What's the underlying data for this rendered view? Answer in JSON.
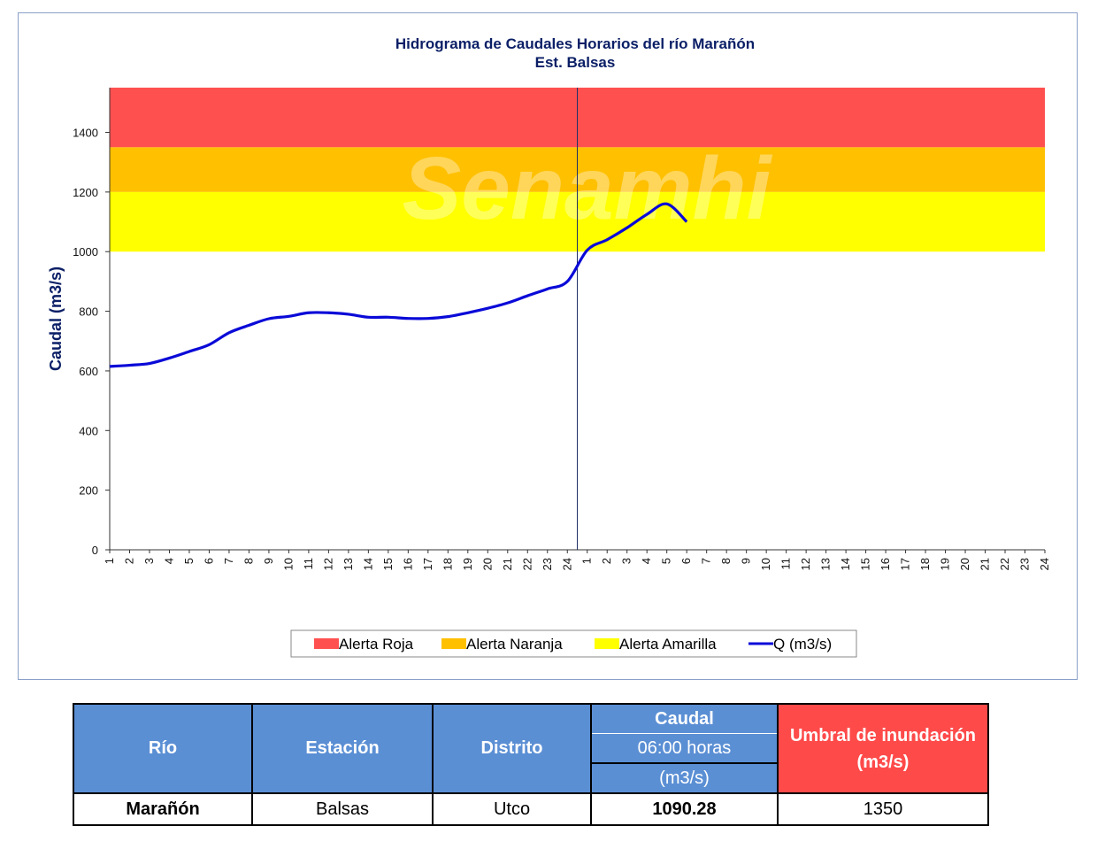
{
  "chart_data": {
    "type": "line",
    "title": "Hidrograma de Caudales Horarios del río Marañón",
    "subtitle": "Est. Balsas",
    "ylabel": "Caudal  (m3/s)",
    "xlabel": "",
    "ylim": [
      0,
      1550
    ],
    "yticks": [
      0,
      200,
      400,
      600,
      800,
      1000,
      1200,
      1400
    ],
    "x_tick_labels": [
      "1",
      "2",
      "3",
      "4",
      "5",
      "6",
      "7",
      "8",
      "9",
      "10",
      "11",
      "12",
      "13",
      "14",
      "15",
      "16",
      "17",
      "18",
      "19",
      "20",
      "21",
      "22",
      "23",
      "24",
      "1",
      "2",
      "3",
      "4",
      "5",
      "6",
      "7",
      "8",
      "9",
      "10",
      "11",
      "12",
      "13",
      "14",
      "15",
      "16",
      "17",
      "18",
      "19",
      "20",
      "21",
      "22",
      "23",
      "24"
    ],
    "day_separator_after_index": 24,
    "alert_bands": [
      {
        "name": "Alerta Roja",
        "from": 1350,
        "to": 1550,
        "color": "#ff5050"
      },
      {
        "name": "Alerta Naranja",
        "from": 1200,
        "to": 1350,
        "color": "#ffc000"
      },
      {
        "name": "Alerta Amarilla",
        "from": 1000,
        "to": 1200,
        "color": "#ffff00"
      }
    ],
    "series": [
      {
        "name": "Q (m3/s)",
        "color": "#0a0ad8",
        "values": [
          615,
          619,
          625,
          643,
          665,
          688,
          728,
          753,
          775,
          783,
          795,
          795,
          790,
          780,
          780,
          776,
          776,
          782,
          795,
          810,
          828,
          852,
          875,
          900,
          1005,
          1040,
          1080,
          1125,
          1160,
          1100
        ]
      }
    ],
    "legend": {
      "position": "bottom",
      "entries": [
        "Alerta Roja",
        "Alerta Naranja",
        "Alerta Amarilla",
        "Q (m3/s)"
      ]
    },
    "grid": false
  },
  "watermark": "Senamhi",
  "table": {
    "headers": {
      "rio": "Río",
      "estacion": "Estación",
      "distrito": "Distrito",
      "caudal": "Caudal",
      "hora": "06:00 horas",
      "unidad": "(m3/s)",
      "umbral": "Umbral de inundación (m3/s)"
    },
    "row": {
      "rio": "Marañón",
      "estacion": "Balsas",
      "distrito": "Utco",
      "caudal": "1090.28",
      "umbral": "1350"
    }
  }
}
